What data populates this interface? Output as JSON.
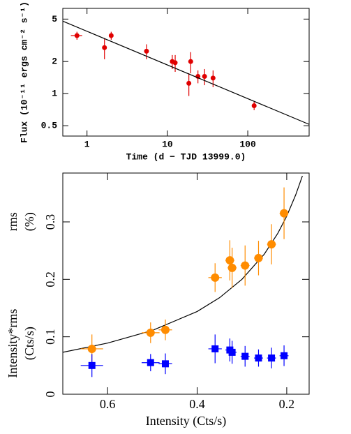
{
  "chart_data": [
    {
      "type": "scatter",
      "xlabel": "Time (d − TJD 13999.0)",
      "ylabel": "Flux (10⁻¹¹ ergs cm⁻² s⁻¹)",
      "xscale": "log",
      "yscale": "log",
      "xlim": [
        0.5,
        580
      ],
      "ylim": [
        0.4,
        6.3
      ],
      "xticks": [
        1,
        10,
        100
      ],
      "yticks": [
        0.5,
        1,
        2,
        5
      ],
      "series": [
        {
          "color": "#e00000",
          "marker": "circle",
          "x": [
            0.75,
            1.65,
            2.0,
            5.5,
            11.5,
            12.5,
            18.5,
            19.5,
            24,
            29,
            37,
            120
          ],
          "values": [
            3.5,
            2.7,
            3.5,
            2.5,
            2.0,
            1.95,
            1.25,
            2.0,
            1.45,
            1.45,
            1.4,
            0.77
          ],
          "yerr": [
            0.3,
            0.6,
            0.3,
            0.4,
            0.3,
            0.35,
            0.3,
            0.45,
            0.2,
            0.25,
            0.25,
            0.07
          ],
          "xerr": [
            0.12,
            null,
            null,
            null,
            null,
            null,
            null,
            null,
            null,
            null,
            null,
            null
          ]
        },
        {
          "color": "#000000",
          "style": "line",
          "x": [
            0.5,
            580
          ],
          "values": [
            4.78,
            0.515
          ]
        }
      ]
    },
    {
      "type": "scatter",
      "xlabel": "Intensity (Cts/s)",
      "ylabels": [
        [
          "rms",
          "(%)"
        ],
        [
          "Intensity*rms",
          "(Cts/s)"
        ]
      ],
      "xlim": [
        0.7,
        0.15
      ],
      "ylim": [
        0,
        0.385
      ],
      "xticks": [
        0.6,
        0.4,
        0.2
      ],
      "yticks": [
        0,
        0.1,
        0.2,
        0.3
      ],
      "series": [
        {
          "color": "#000000",
          "style": "line",
          "x": [
            0.7,
            0.6,
            0.5,
            0.4,
            0.35,
            0.3,
            0.25,
            0.22,
            0.2,
            0.18,
            0.165
          ],
          "values": [
            0.073,
            0.089,
            0.111,
            0.144,
            0.168,
            0.2,
            0.244,
            0.28,
            0.31,
            0.347,
            0.38
          ]
        },
        {
          "color": "#ff8c00",
          "marker": "circle",
          "x": [
            0.635,
            0.504,
            0.471,
            0.36,
            0.327,
            0.322,
            0.293,
            0.263,
            0.234,
            0.206
          ],
          "values": [
            0.079,
            0.107,
            0.112,
            0.203,
            0.233,
            0.22,
            0.224,
            0.237,
            0.261,
            0.315
          ],
          "yerr": [
            0.025,
            0.018,
            0.018,
            0.025,
            0.035,
            0.035,
            0.035,
            0.03,
            0.035,
            0.045
          ],
          "xerr": [
            0.025,
            0.02,
            0.015,
            0.015,
            0.01,
            0.01,
            0.01,
            0.01,
            0.01,
            0.01
          ]
        },
        {
          "color": "#0000ff",
          "marker": "square",
          "x": [
            0.635,
            0.504,
            0.471,
            0.36,
            0.327,
            0.322,
            0.293,
            0.263,
            0.234,
            0.206
          ],
          "values": [
            0.05,
            0.055,
            0.053,
            0.079,
            0.077,
            0.073,
            0.066,
            0.063,
            0.063,
            0.067
          ],
          "yerr": [
            0.02,
            0.015,
            0.018,
            0.025,
            0.02,
            0.02,
            0.018,
            0.015,
            0.018,
            0.018
          ],
          "xerr": [
            0.025,
            0.02,
            0.015,
            0.015,
            0.01,
            0.01,
            0.01,
            0.01,
            0.01,
            0.01
          ]
        }
      ]
    }
  ]
}
